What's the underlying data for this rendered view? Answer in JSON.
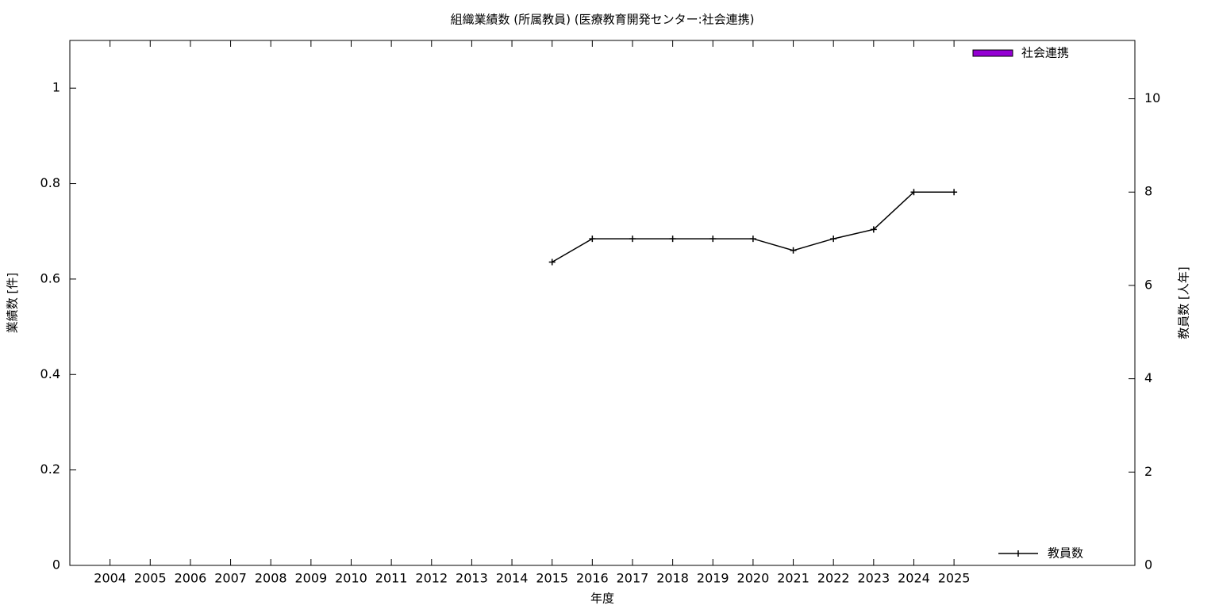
{
  "chart_data": {
    "type": "bar",
    "title": "組織業績数 (所属教員) (医療教育開発センター:社会連携)",
    "xlabel": "年度",
    "ylabel": "業績数 [件]",
    "y2label": "教員数 [人年]",
    "categories": [
      "2004",
      "2005",
      "2006",
      "2007",
      "2008",
      "2009",
      "2010",
      "2011",
      "2012",
      "2013",
      "2014",
      "2015",
      "2016",
      "2017",
      "2018",
      "2019",
      "2020",
      "2021",
      "2022",
      "2023",
      "2024",
      "2025"
    ],
    "series": [
      {
        "name": "社会連携",
        "type": "bar",
        "color": "#9400d3",
        "values": [
          0,
          0,
          0,
          0,
          0,
          0,
          0,
          0,
          0,
          0,
          0,
          0,
          0,
          0,
          0,
          0,
          0,
          0,
          0,
          0,
          0,
          0
        ]
      },
      {
        "name": "教員数",
        "type": "line",
        "axis": "y2",
        "color": "#000000",
        "values": [
          null,
          null,
          null,
          null,
          null,
          null,
          null,
          null,
          null,
          null,
          null,
          6.5,
          7,
          7,
          7,
          7,
          7,
          6.75,
          7,
          7.2,
          8,
          8
        ]
      }
    ],
    "ylim": [
      0,
      1.1
    ],
    "yticks": [
      0,
      0.2,
      0.4,
      0.6,
      0.8,
      1
    ],
    "y2lim": [
      0,
      11.25
    ],
    "y2ticks": [
      0,
      2,
      4,
      6,
      8,
      10
    ]
  }
}
